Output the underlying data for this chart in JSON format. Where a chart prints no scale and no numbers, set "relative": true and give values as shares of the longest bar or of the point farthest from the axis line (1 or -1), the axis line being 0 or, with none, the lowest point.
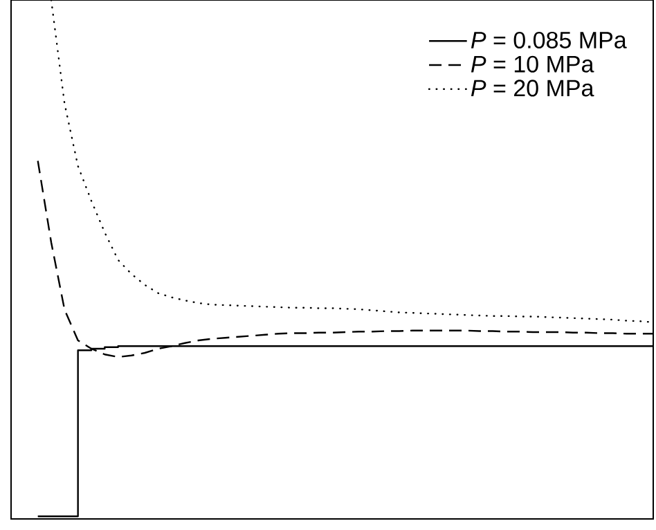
{
  "chart_data": {
    "type": "line",
    "relative": true,
    "legend": "top right",
    "categories": [
      null,
      null,
      null,
      null,
      null,
      null,
      null,
      null,
      null,
      null,
      null,
      null,
      null,
      null,
      null,
      null,
      null,
      null,
      null,
      null,
      null,
      null,
      null,
      null,
      null,
      null,
      null,
      null,
      null,
      null,
      null,
      null,
      null,
      null,
      null,
      null,
      null,
      null,
      null,
      null,
      null,
      null,
      null,
      null,
      null,
      null,
      null,
      null,
      null
    ],
    "series": [
      {
        "name": "*P* = 0.085 MPa",
        "type": "step",
        "color": "#000000",
        "line_style": "solid",
        "values": [
          null,
          null,
          0.005,
          0.005,
          0.005,
          0.325,
          0.328,
          0.331,
          0.333,
          0.333,
          0.333,
          0.333,
          0.333,
          0.333,
          0.333,
          0.333,
          0.333,
          0.333,
          0.333,
          0.333,
          0.333,
          0.333,
          0.333,
          0.333,
          0.333,
          0.333,
          0.333,
          0.333,
          0.333,
          0.333,
          0.333,
          0.333,
          0.333,
          0.333,
          0.333,
          0.333,
          0.333,
          0.333,
          0.333,
          0.333,
          0.333,
          0.333,
          0.333,
          0.333,
          0.333,
          0.333,
          0.333,
          0.333,
          0.333
        ]
      },
      {
        "name": "*P* = 10 MPa",
        "color": "#000000",
        "line_style": "dashed",
        "values": [
          null,
          null,
          0.69,
          0.533,
          0.403,
          0.344,
          0.328,
          0.317,
          0.312,
          0.315,
          0.32,
          0.328,
          0.333,
          0.339,
          0.344,
          0.347,
          0.349,
          0.351,
          0.353,
          0.355,
          0.357,
          0.358,
          0.358,
          0.359,
          0.359,
          0.36,
          0.361,
          0.361,
          0.362,
          0.362,
          0.363,
          0.363,
          0.363,
          0.363,
          0.363,
          0.362,
          0.362,
          0.361,
          0.361,
          0.36,
          0.36,
          0.36,
          0.359,
          0.359,
          0.358,
          0.358,
          0.357,
          0.357,
          0.357
        ]
      },
      {
        "name": "*P* = 20 MPa",
        "color": "#000000",
        "line_style": "dotted",
        "values": [
          null,
          null,
          null,
          1.0,
          0.8,
          0.68,
          0.613,
          0.552,
          0.499,
          0.472,
          0.451,
          0.435,
          0.427,
          0.421,
          0.416,
          0.413,
          0.412,
          0.411,
          0.41,
          0.409,
          0.408,
          0.407,
          0.407,
          0.406,
          0.406,
          0.405,
          0.404,
          0.402,
          0.4,
          0.398,
          0.397,
          0.396,
          0.395,
          0.394,
          0.393,
          0.392,
          0.391,
          0.391,
          0.39,
          0.39,
          0.389,
          0.388,
          0.387,
          0.386,
          0.385,
          0.384,
          0.382,
          0.381,
          0.379
        ]
      }
    ]
  }
}
